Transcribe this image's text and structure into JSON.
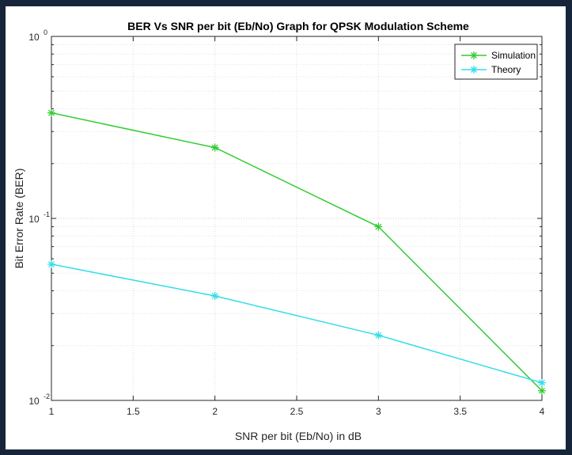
{
  "chart_data": {
    "type": "line",
    "title": "BER Vs SNR per bit (Eb/No) Graph for QPSK Modulation Scheme",
    "xlabel": "SNR per bit (Eb/No) in dB",
    "ylabel": "Bit Error Rate (BER)",
    "x_scale": "linear",
    "y_scale": "log",
    "xlim": [
      1,
      4
    ],
    "ylim": [
      0.01,
      1
    ],
    "grid": true,
    "legend_position": "top-right",
    "x_ticks": [
      {
        "value": 1,
        "label": "1"
      },
      {
        "value": 1.5,
        "label": "1.5"
      },
      {
        "value": 2,
        "label": "2"
      },
      {
        "value": 2.5,
        "label": "2.5"
      },
      {
        "value": 3,
        "label": "3"
      },
      {
        "value": 3.5,
        "label": "3.5"
      },
      {
        "value": 4,
        "label": "4"
      }
    ],
    "y_ticks": [
      {
        "value": 1,
        "base": "10",
        "exp": "0"
      },
      {
        "value": 0.1,
        "base": "10",
        "exp": "-1"
      },
      {
        "value": 0.01,
        "base": "10",
        "exp": "-2"
      }
    ],
    "x": [
      1,
      2,
      3,
      4
    ],
    "series": [
      {
        "name": "Simulation",
        "color": "#33cc33",
        "marker": "asterisk",
        "values": [
          0.38,
          0.245,
          0.09,
          0.0113
        ]
      },
      {
        "name": "Theory",
        "color": "#33dde8",
        "marker": "asterisk",
        "values": [
          0.056,
          0.0375,
          0.0228,
          0.0125
        ]
      }
    ]
  }
}
